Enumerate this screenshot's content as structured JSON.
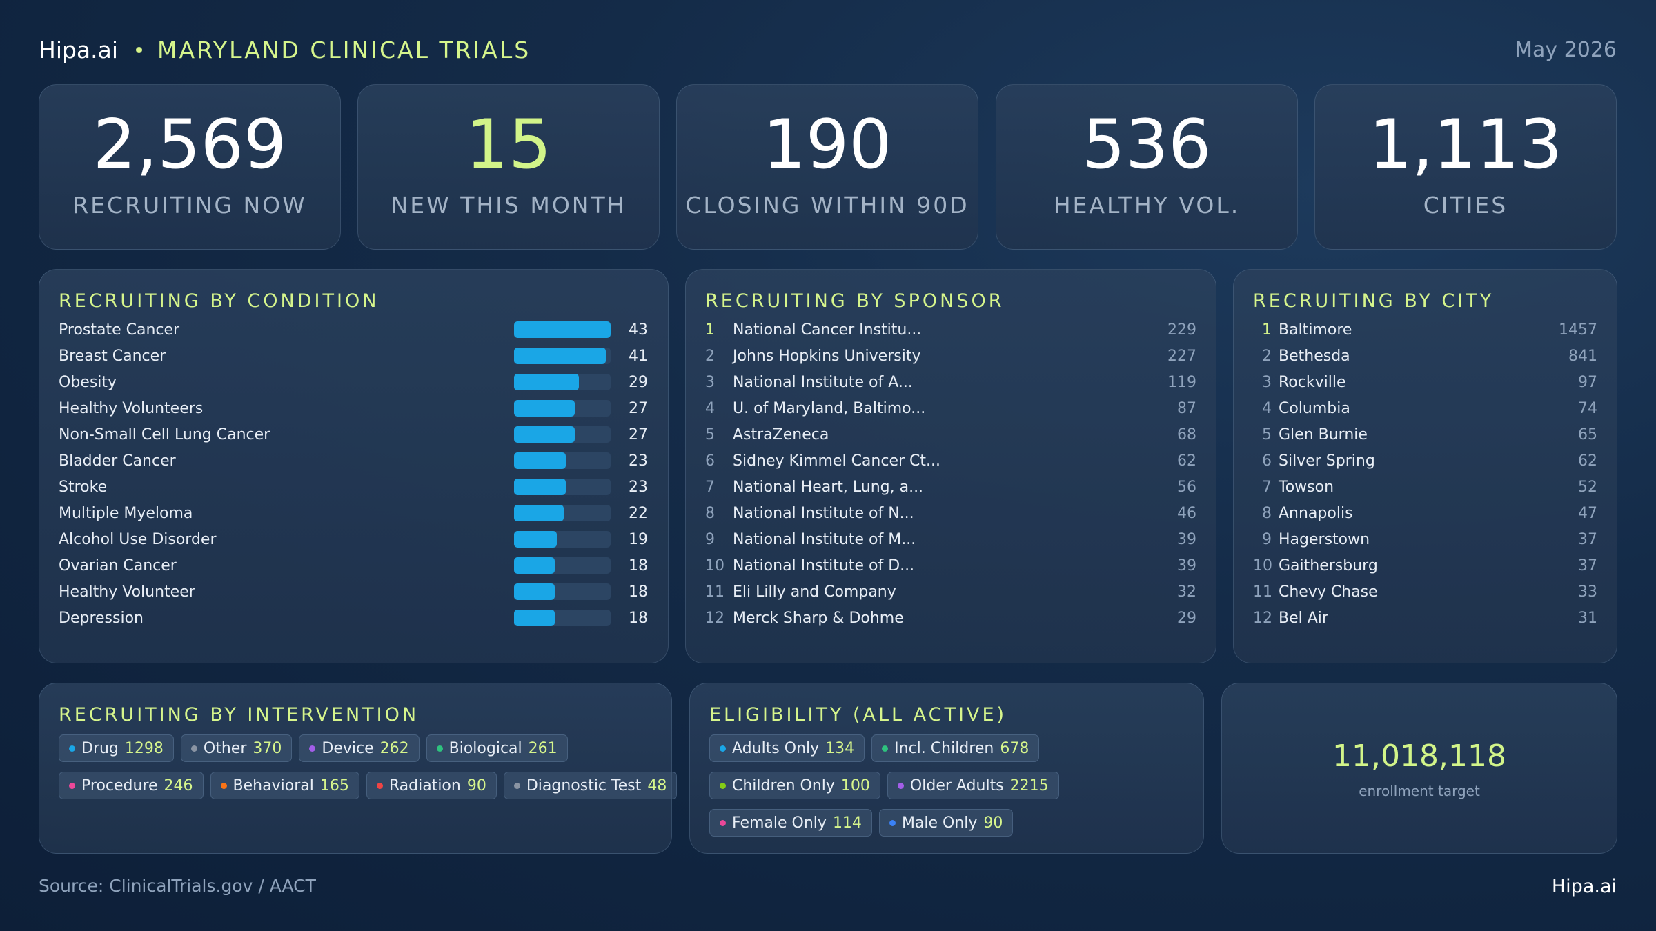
{
  "header": {
    "brand": "Hipa.ai",
    "title": "MARYLAND CLINICAL TRIALS",
    "date": "May 2026"
  },
  "kpis": [
    {
      "value": "2,569",
      "label": "RECRUITING NOW"
    },
    {
      "value": "15",
      "label": "NEW THIS MONTH"
    },
    {
      "value": "190",
      "label": "CLOSING WITHIN 90D"
    },
    {
      "value": "536",
      "label": "HEALTHY VOL."
    },
    {
      "value": "1,113",
      "label": "CITIES"
    }
  ],
  "condition": {
    "title": "RECRUITING BY CONDITION",
    "items": [
      {
        "name": "Prostate Cancer",
        "value": "43",
        "fill": 1.0
      },
      {
        "name": "Breast Cancer",
        "value": "41",
        "fill": 0.953
      },
      {
        "name": "Obesity",
        "value": "29",
        "fill": 0.674
      },
      {
        "name": "Healthy Volunteers",
        "value": "27",
        "fill": 0.628
      },
      {
        "name": "Non-Small Cell Lung Cancer",
        "value": "27",
        "fill": 0.628
      },
      {
        "name": "Bladder Cancer",
        "value": "23",
        "fill": 0.535
      },
      {
        "name": "Stroke",
        "value": "23",
        "fill": 0.535
      },
      {
        "name": "Multiple Myeloma",
        "value": "22",
        "fill": 0.512
      },
      {
        "name": "Alcohol Use Disorder",
        "value": "19",
        "fill": 0.442
      },
      {
        "name": "Ovarian Cancer",
        "value": "18",
        "fill": 0.419
      },
      {
        "name": "Healthy Volunteer",
        "value": "18",
        "fill": 0.419
      },
      {
        "name": "Depression",
        "value": "18",
        "fill": 0.419
      }
    ]
  },
  "sponsor": {
    "title": "RECRUITING BY SPONSOR",
    "items": [
      {
        "rank": "1",
        "name": "National Cancer Institu...",
        "value": "229"
      },
      {
        "rank": "2",
        "name": "Johns Hopkins University",
        "value": "227"
      },
      {
        "rank": "3",
        "name": "National Institute of A...",
        "value": "119"
      },
      {
        "rank": "4",
        "name": "U. of Maryland, Baltimo...",
        "value": "87"
      },
      {
        "rank": "5",
        "name": "AstraZeneca",
        "value": "68"
      },
      {
        "rank": "6",
        "name": "Sidney Kimmel Cancer Ct...",
        "value": "62"
      },
      {
        "rank": "7",
        "name": "National Heart, Lung, a...",
        "value": "56"
      },
      {
        "rank": "8",
        "name": "National Institute of N...",
        "value": "46"
      },
      {
        "rank": "9",
        "name": "National Institute of M...",
        "value": "39"
      },
      {
        "rank": "10",
        "name": "National Institute of D...",
        "value": "39"
      },
      {
        "rank": "11",
        "name": "Eli Lilly and Company",
        "value": "32"
      },
      {
        "rank": "12",
        "name": "Merck Sharp & Dohme",
        "value": "29"
      }
    ]
  },
  "city": {
    "title": "RECRUITING BY CITY",
    "items": [
      {
        "rank": "1",
        "name": "Baltimore",
        "value": "1457"
      },
      {
        "rank": "2",
        "name": "Bethesda",
        "value": "841"
      },
      {
        "rank": "3",
        "name": "Rockville",
        "value": "97"
      },
      {
        "rank": "4",
        "name": "Columbia",
        "value": "74"
      },
      {
        "rank": "5",
        "name": "Glen Burnie",
        "value": "65"
      },
      {
        "rank": "6",
        "name": "Silver Spring",
        "value": "62"
      },
      {
        "rank": "7",
        "name": "Towson",
        "value": "52"
      },
      {
        "rank": "8",
        "name": "Annapolis",
        "value": "47"
      },
      {
        "rank": "9",
        "name": "Hagerstown",
        "value": "37"
      },
      {
        "rank": "10",
        "name": "Gaithersburg",
        "value": "37"
      },
      {
        "rank": "11",
        "name": "Chevy Chase",
        "value": "33"
      },
      {
        "rank": "12",
        "name": "Bel Air",
        "value": "31"
      }
    ]
  },
  "intervention": {
    "title": "RECRUITING BY INTERVENTION",
    "rows": [
      [
        {
          "label": "Drug",
          "value": "1298",
          "color": "#1aa6e6"
        },
        {
          "label": "Other",
          "value": "370",
          "color": "#8a94a3"
        },
        {
          "label": "Device",
          "value": "262",
          "color": "#a35ee8"
        },
        {
          "label": "Biological",
          "value": "261",
          "color": "#2ec27e"
        }
      ],
      [
        {
          "label": "Procedure",
          "value": "246",
          "color": "#ec4899"
        },
        {
          "label": "Behavioral",
          "value": "165",
          "color": "#f97316"
        },
        {
          "label": "Radiation",
          "value": "90",
          "color": "#ef4444"
        },
        {
          "label": "Diagnostic Test",
          "value": "48",
          "color": "#8a94a3"
        }
      ]
    ]
  },
  "eligibility": {
    "title": "ELIGIBILITY (ALL ACTIVE)",
    "rows": [
      [
        {
          "label": "Adults Only",
          "value": "134",
          "color": "#1aa6e6"
        },
        {
          "label": "Incl. Children",
          "value": "678",
          "color": "#2ec27e"
        }
      ],
      [
        {
          "label": "Children Only",
          "value": "100",
          "color": "#84cc16"
        },
        {
          "label": "Older Adults",
          "value": "2215",
          "color": "#a35ee8"
        }
      ],
      [
        {
          "label": "Female Only",
          "value": "114",
          "color": "#ec4899"
        },
        {
          "label": "Male Only",
          "value": "90",
          "color": "#3b82f6"
        }
      ]
    ]
  },
  "target": {
    "value": "11,018,118",
    "label": "enrollment target"
  },
  "footer": {
    "source": "Source: ClinicalTrials.gov / AACT",
    "brand": "Hipa.ai"
  }
}
